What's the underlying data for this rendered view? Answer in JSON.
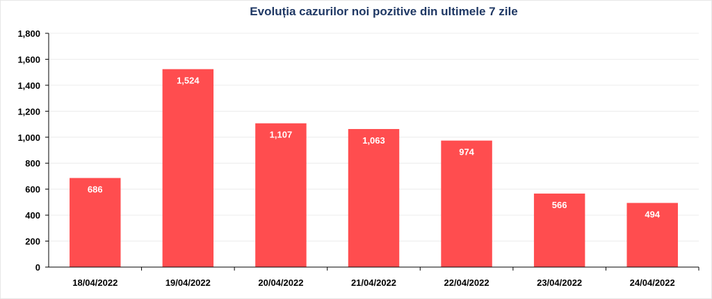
{
  "chart_data": {
    "type": "bar",
    "title": "Evoluția cazurilor noi pozitive din ultimele 7 zile",
    "categories": [
      "18/04/2022",
      "19/04/2022",
      "20/04/2022",
      "21/04/2022",
      "22/04/2022",
      "23/04/2022",
      "24/04/2022"
    ],
    "values": [
      686,
      1524,
      1107,
      1063,
      974,
      566,
      494
    ],
    "value_labels": [
      "686",
      "1,524",
      "1,107",
      "1,063",
      "974",
      "566",
      "494"
    ],
    "y_ticks": [
      "0",
      "200",
      "400",
      "600",
      "800",
      "1,000",
      "1,200",
      "1,400",
      "1,600",
      "1,800"
    ],
    "ylim": [
      0,
      1800
    ],
    "ytick_step": 200,
    "xlabel": "",
    "ylabel": "",
    "grid": true,
    "legend": "none",
    "colors": {
      "bar": "#ff4d4f",
      "title": "#1f3864",
      "grid": "#ececec",
      "axis": "#000000",
      "data_label": "#ffffff"
    }
  }
}
